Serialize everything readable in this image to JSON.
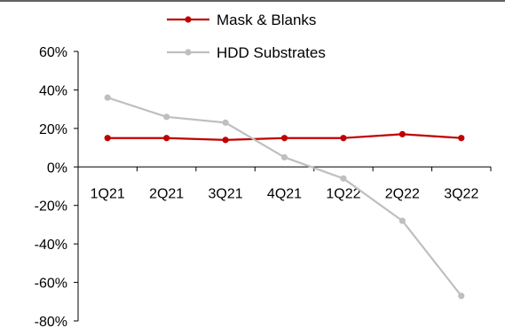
{
  "chart_data": {
    "type": "line",
    "title": "",
    "xlabel": "",
    "ylabel": "",
    "categories": [
      "1Q21",
      "2Q21",
      "3Q21",
      "4Q21",
      "1Q22",
      "2Q22",
      "3Q22"
    ],
    "ylim": [
      -80,
      60
    ],
    "yticks": [
      60,
      40,
      20,
      0,
      -20,
      -40,
      -60,
      -80
    ],
    "ytick_labels": [
      "60%",
      "40%",
      "20%",
      "0%",
      "-20%",
      "-40%",
      "-60%",
      "-80%"
    ],
    "grid": false,
    "legend_position": "top",
    "series": [
      {
        "name": "Mask & Blanks",
        "color": "#C00000",
        "values": [
          15,
          15,
          14,
          15,
          15,
          17,
          15
        ]
      },
      {
        "name": "HDD Substrates",
        "color": "#BFBFBF",
        "values": [
          36,
          26,
          23,
          5,
          -6,
          -28,
          -67
        ]
      }
    ]
  }
}
